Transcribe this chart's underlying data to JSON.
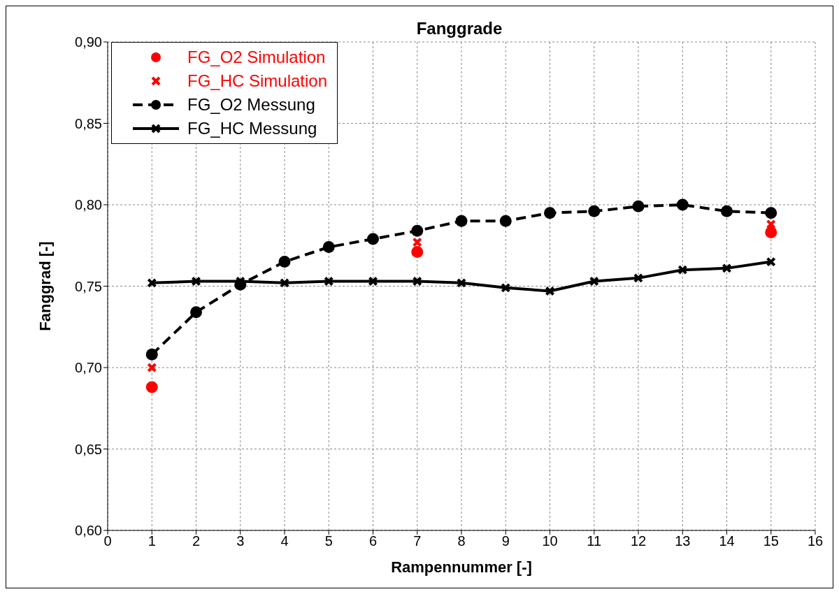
{
  "chart_data": {
    "type": "line",
    "title": "Fanggrade",
    "xlabel": "Rampennummer [-]",
    "ylabel": "Fanggrad [-]",
    "xlim": [
      0,
      16
    ],
    "xticks": [
      0,
      1,
      2,
      3,
      4,
      5,
      6,
      7,
      8,
      9,
      10,
      11,
      12,
      13,
      14,
      15,
      16
    ],
    "ylim": [
      0.6,
      0.9
    ],
    "yticks": [
      {
        "value": 0.6,
        "label": "0,60"
      },
      {
        "value": 0.65,
        "label": "0,65"
      },
      {
        "value": 0.7,
        "label": "0,70"
      },
      {
        "value": 0.75,
        "label": "0,75"
      },
      {
        "value": 0.8,
        "label": "0,80"
      },
      {
        "value": 0.85,
        "label": "0,85"
      },
      {
        "value": 0.9,
        "label": "0,90"
      }
    ],
    "grid": true,
    "legend": "top left",
    "series": [
      {
        "name": "FG_O2 Simulation",
        "type": "scatter",
        "marker": "circle",
        "color": "#ff0000",
        "x": [
          1,
          7,
          15
        ],
        "values": [
          0.688,
          0.771,
          0.783
        ]
      },
      {
        "name": "FG_HC Simulation",
        "type": "scatter",
        "marker": "cross",
        "color": "#ff0000",
        "x": [
          1,
          7,
          15
        ],
        "values": [
          0.7,
          0.777,
          0.788
        ]
      },
      {
        "name": "FG_O2 Messung",
        "type": "line",
        "marker": "circle",
        "line_style": "dashed",
        "color": "#000000",
        "x": [
          1,
          2,
          3,
          4,
          5,
          6,
          7,
          8,
          9,
          10,
          11,
          12,
          13,
          14,
          15
        ],
        "values": [
          0.708,
          0.734,
          0.751,
          0.765,
          0.774,
          0.779,
          0.784,
          0.79,
          0.79,
          0.795,
          0.796,
          0.799,
          0.8,
          0.796,
          0.795
        ]
      },
      {
        "name": "FG_HC Messung",
        "type": "line",
        "marker": "cross",
        "line_style": "solid",
        "color": "#000000",
        "x": [
          1,
          2,
          3,
          4,
          5,
          6,
          7,
          8,
          9,
          10,
          11,
          12,
          13,
          14,
          15
        ],
        "values": [
          0.752,
          0.753,
          0.753,
          0.752,
          0.753,
          0.753,
          0.753,
          0.752,
          0.749,
          0.747,
          0.753,
          0.755,
          0.76,
          0.761,
          0.765
        ]
      }
    ]
  }
}
